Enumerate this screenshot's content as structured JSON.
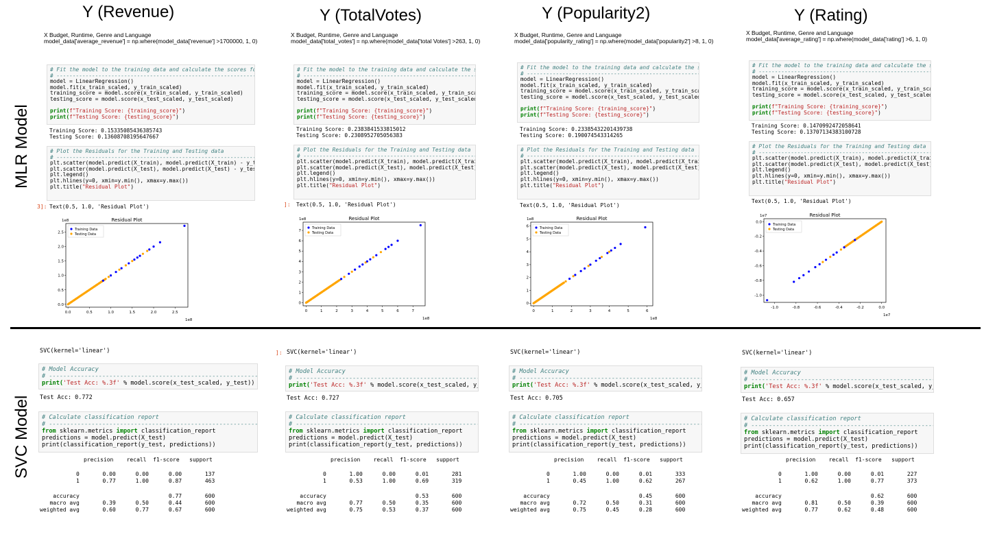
{
  "column_titles": [
    "Y (Revenue)",
    "Y (TotalVotes)",
    "Y (Popularity2)",
    "Y (Rating)"
  ],
  "row_labels": {
    "mlr": "MLR Model",
    "svc": "SVC Model"
  },
  "columns": [
    {
      "desc_line1": "X Budget, Runtime, Genre and Language",
      "desc_line2": "model_data['average_revenue'] = np.where(model_data['revenue'] >1700000, 1, 0)",
      "train_score": "Training Score: 0.15335085436385743",
      "test_score": "Testing Score: 0.13608708195647667",
      "text_out": "Text(0.5, 1.0, 'Residual Plot')",
      "svc": "SVC(kernel='linear')",
      "test_acc": "Test Acc: 0.772",
      "report": {
        "header": "precision    recall  f1-score   support",
        "r0": "           0       0.00      0.00      0.00       137",
        "r1": "           1       0.77      1.00      0.87       463",
        "acc": "    accuracy                           0.77       600",
        "macro": "   macro avg       0.39      0.50      0.44       600",
        "weighted": "weighted avg       0.60      0.77      0.67       600"
      }
    },
    {
      "desc_line1": "X Budget, Runtime, Genre and Language",
      "desc_line2": "model_data['total_votes'] = np.where(model_data['total Votes'] >263, 1, 0)",
      "train_score": "Training Score: 0.2383841533815012",
      "test_score": "Testing Score: 0.2308952705056383",
      "text_out": "Text(0.5, 1.0, 'Residual Plot')",
      "svc": "SVC(kernel='linear')",
      "test_acc": "Test Acc: 0.727",
      "report": {
        "header": "precision    recall  f1-score   support",
        "r0": "           0       1.00      0.00      0.01       281",
        "r1": "           1       0.53      1.00      0.69       319",
        "acc": "    accuracy                           0.53       600",
        "macro": "   macro avg       0.77      0.50      0.35       600",
        "weighted": "weighted avg       0.75      0.53      0.37       600"
      }
    },
    {
      "desc_line1": "X Budget, Runtime, Genre and Language",
      "desc_line2": "model_data['popularity_rating'] = np.where(model_data['popularity2'] >8, 1, 0)",
      "train_score": "Training Score: 0.23385432201439738",
      "test_score": "Testing Score: 0.190074543314265",
      "text_out": "Text(0.5, 1.0, 'Residual Plot')",
      "svc": "SVC(kernel='linear')",
      "test_acc": "Test Acc: 0.705",
      "report": {
        "header": "precision    recall  f1-score   support",
        "r0": "           0       1.00      0.00      0.01       333",
        "r1": "           1       0.45      1.00      0.62       267",
        "acc": "    accuracy                           0.45       600",
        "macro": "   macro avg       0.72      0.50      0.31       600",
        "weighted": "weighted avg       0.75      0.45      0.28       600"
      }
    },
    {
      "desc_line1": "X Budget, Runtime, Genre and Language",
      "desc_line2": "model_data['average_rating'] = np.where(model_data['rating'] >6, 1, 0)",
      "train_score": "Training Score: 0.1470992472058641",
      "test_score": "Testing Score: 0.13707134383100728",
      "text_out": "Text(0.5, 1.0, 'Residual Plot')",
      "svc": "SVC(kernel='linear')",
      "test_acc": "Test Acc: 0.657",
      "report": {
        "header": "precision    recall  f1-score   support",
        "r0": "           0       1.00      0.00      0.01       227",
        "r1": "           1       0.62      1.00      0.77       373",
        "acc": "    accuracy                           0.62       600",
        "macro": "   macro avg       0.81      0.50      0.39       600",
        "weighted": "weighted avg       0.77      0.62      0.48       600"
      }
    }
  ],
  "code": {
    "fit_comment": "# Fit the model to the training data and calculate the scores for both the training and testing data.",
    "dashes": "# ------------------------------------------------------------------------------------",
    "fit_l1": "model = LinearRegression()",
    "fit_l2": "model.fit(x_train_scaled, y_train_scaled)",
    "fit_l3": "training_score = model.score(x_train_scaled, y_train_scaled)",
    "fit_l4": "testing_score = model.score(x_test_scaled, y_test_scaled)",
    "print_a1": "print(",
    "print_a2": "f\"Training Score: {training_score}\"",
    "print_b2": "f\"Testing Score: {testing_score}\"",
    "close": ")",
    "resid_comment": "# Plot the Residuals for the Training and Testing data",
    "resid_l1": "plt.scatter(model.predict(X_train), model.predict(X_train) - y_train, c=\"blue\", label=\"Training Data\")",
    "resid_l2": "plt.scatter(model.predict(X_test), model.predict(X_test) - y_test, c=\"orange\", label=\"Testing Data\")",
    "resid_l3": "plt.legend()",
    "resid_l4": "plt.hlines(y=0, xmin=y.min(), xmax=y.max())",
    "resid_l5a": "plt.title(",
    "resid_l5b": "\"Residual Plot\"",
    "acc_comment": "# Model Accuracy",
    "acc_l1a": "print(",
    "acc_l1b": "'Test Acc: %.3f'",
    "acc_l1c": " % model.score(x_test_scaled, y_test))",
    "cr_comment": "# Calculate classification report",
    "cr_from": "from",
    "cr_mod": " sklearn.metrics ",
    "cr_import": "import",
    "cr_name": " classification_report",
    "cr_l2": "predictions = model.predict(X_test)",
    "cr_l3": "print(classification_report(y_test, predictions))",
    "prompt_a": "3]:",
    "prompt_b": "]:",
    "prompt_c": "]:"
  },
  "plots": {
    "title": "Residual Plot",
    "legend": [
      "Training Data",
      "Testing Data"
    ],
    "colors": {
      "train": "#0000ff",
      "test": "#ffa500"
    },
    "panels": [
      {
        "exp": "1e8",
        "xexp": "1e8",
        "xticks": [
          0.0,
          0.5,
          1.0,
          1.5,
          2.0,
          2.5
        ],
        "yticks": [
          0.0,
          0.5,
          1.0,
          1.5,
          2.0,
          2.5
        ],
        "xlim": [
          -0.05,
          2.8
        ],
        "ylim": [
          -0.1,
          2.8
        ],
        "xfmt": 1,
        "train_pts": [
          [
            0.82,
            0.82
          ],
          [
            1.0,
            1.0
          ],
          [
            1.12,
            1.12
          ],
          [
            1.25,
            1.25
          ],
          [
            1.42,
            1.42
          ],
          [
            1.55,
            1.55
          ],
          [
            1.62,
            1.62
          ],
          [
            1.68,
            1.68
          ],
          [
            1.9,
            1.9
          ],
          [
            2.0,
            2.0
          ],
          [
            2.15,
            2.15
          ],
          [
            2.72,
            2.72
          ]
        ],
        "test_pts": [
          [
            0.95,
            0.95
          ],
          [
            1.2,
            1.2
          ],
          [
            1.35,
            1.35
          ],
          [
            1.5,
            1.5
          ],
          [
            1.75,
            1.75
          ],
          [
            1.85,
            1.85
          ]
        ],
        "line_max": 0.88
      },
      {
        "exp": "1e8",
        "xexp": "1e8",
        "xticks": [
          0,
          1,
          2,
          3,
          4,
          5,
          6,
          7
        ],
        "yticks": [
          0,
          1,
          2,
          3,
          4,
          5,
          6,
          7
        ],
        "xlim": [
          -0.2,
          7.8
        ],
        "ylim": [
          -0.3,
          7.8
        ],
        "xfmt": 0,
        "train_pts": [
          [
            2.3,
            2.3
          ],
          [
            2.8,
            2.8
          ],
          [
            3.2,
            3.2
          ],
          [
            3.5,
            3.5
          ],
          [
            3.7,
            3.7
          ],
          [
            4.0,
            4.0
          ],
          [
            4.2,
            4.2
          ],
          [
            4.6,
            4.6
          ],
          [
            5.2,
            5.2
          ],
          [
            5.4,
            5.4
          ],
          [
            5.6,
            5.6
          ],
          [
            6.0,
            6.0
          ],
          [
            7.5,
            7.5
          ]
        ],
        "test_pts": [
          [
            2.5,
            2.5
          ],
          [
            3.0,
            3.0
          ],
          [
            3.9,
            3.9
          ],
          [
            4.4,
            4.4
          ],
          [
            4.9,
            4.9
          ]
        ],
        "line_max": 2.2
      },
      {
        "exp": "1e8",
        "xexp": "1e8",
        "xticks": [
          0,
          1,
          2,
          3,
          4,
          5,
          6
        ],
        "yticks": [
          0,
          1,
          2,
          3,
          4,
          5,
          6
        ],
        "xlim": [
          -0.15,
          6.3
        ],
        "ylim": [
          -0.2,
          6.3
        ],
        "xfmt": 0,
        "train_pts": [
          [
            1.9,
            1.9
          ],
          [
            2.2,
            2.2
          ],
          [
            2.5,
            2.5
          ],
          [
            2.7,
            2.7
          ],
          [
            3.0,
            3.0
          ],
          [
            3.3,
            3.3
          ],
          [
            3.5,
            3.5
          ],
          [
            3.9,
            3.9
          ],
          [
            4.1,
            4.1
          ],
          [
            4.3,
            4.3
          ],
          [
            4.6,
            4.6
          ],
          [
            5.9,
            5.9
          ]
        ],
        "test_pts": [
          [
            1.7,
            1.7
          ],
          [
            2.1,
            2.1
          ],
          [
            2.9,
            2.9
          ],
          [
            3.6,
            3.6
          ],
          [
            4.0,
            4.0
          ]
        ],
        "line_max": 1.6
      },
      {
        "exp": "1e7",
        "xexp": "1e7",
        "xticks": [
          -1.0,
          -0.8,
          -0.6,
          -0.4,
          -0.2,
          0.0
        ],
        "yticks": [
          0.0,
          -0.2,
          -0.4,
          -0.6,
          -0.8,
          -1.0
        ],
        "xlim": [
          -1.1,
          0.04
        ],
        "ylim": [
          -1.1,
          0.04
        ],
        "xfmt": 1,
        "train_pts": [
          [
            -1.07,
            -1.07
          ],
          [
            -0.82,
            -0.82
          ],
          [
            -0.77,
            -0.77
          ],
          [
            -0.73,
            -0.73
          ],
          [
            -0.68,
            -0.68
          ],
          [
            -0.62,
            -0.62
          ],
          [
            -0.58,
            -0.58
          ],
          [
            -0.52,
            -0.52
          ],
          [
            -0.45,
            -0.45
          ],
          [
            -0.42,
            -0.42
          ],
          [
            -0.35,
            -0.35
          ],
          [
            -0.25,
            -0.25
          ]
        ],
        "test_pts": [
          [
            -0.55,
            -0.55
          ],
          [
            -0.48,
            -0.48
          ],
          [
            -0.38,
            -0.38
          ]
        ],
        "line_min": -0.35
      }
    ]
  }
}
